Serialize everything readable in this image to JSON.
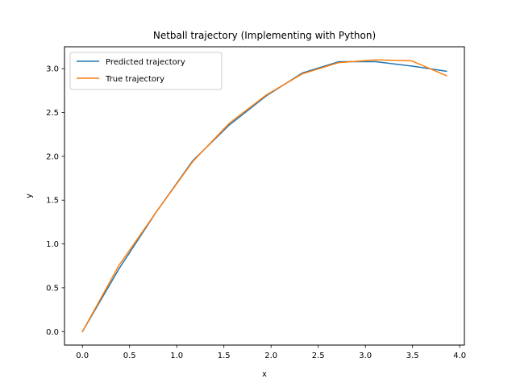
{
  "chart_data": {
    "type": "line",
    "title": "Netball trajectory (Implementing with Python)",
    "xlabel": "x",
    "ylabel": "y",
    "xlim": [
      -0.19,
      4.05
    ],
    "ylim": [
      -0.154,
      3.25
    ],
    "xticks": [
      0.0,
      0.5,
      1.0,
      1.5,
      2.0,
      2.5,
      3.0,
      3.5,
      4.0
    ],
    "xtick_labels": [
      "0.0",
      "0.5",
      "1.0",
      "1.5",
      "2.0",
      "2.5",
      "3.0",
      "3.5",
      "4.0"
    ],
    "yticks": [
      0.0,
      0.5,
      1.0,
      1.5,
      2.0,
      2.5,
      3.0
    ],
    "ytick_labels": [
      "0.0",
      "0.5",
      "1.0",
      "1.5",
      "2.0",
      "2.5",
      "3.0"
    ],
    "grid": false,
    "legend_position": "upper-left",
    "series": [
      {
        "name": "Predicted trajectory",
        "color": "#1f77b4",
        "x": [
          0.0,
          0.39,
          0.78,
          1.17,
          1.56,
          1.95,
          2.33,
          2.72,
          3.11,
          3.49,
          3.86
        ],
        "y": [
          0.0,
          0.72,
          1.36,
          1.95,
          2.36,
          2.69,
          2.95,
          3.08,
          3.08,
          3.03,
          2.97
        ]
      },
      {
        "name": "True trajectory",
        "color": "#ff7f0e",
        "x": [
          0.0,
          0.39,
          0.78,
          1.17,
          1.56,
          1.95,
          2.33,
          2.72,
          3.11,
          3.49,
          3.86
        ],
        "y": [
          0.0,
          0.76,
          1.36,
          1.94,
          2.38,
          2.7,
          2.94,
          3.07,
          3.1,
          3.09,
          2.92
        ]
      }
    ]
  }
}
